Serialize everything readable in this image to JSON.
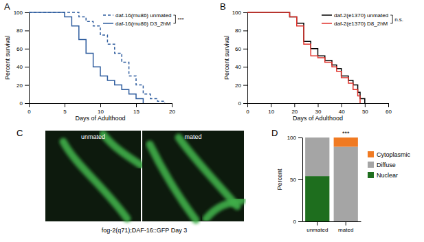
{
  "chart_data": [
    {
      "type": "line",
      "title": "A",
      "xlabel": "Days of Adulthood",
      "ylabel": "Percent survival",
      "x": [
        0,
        5,
        6,
        7,
        8,
        9,
        10,
        11,
        12,
        13,
        14,
        15,
        16,
        17,
        18,
        19
      ],
      "series": [
        {
          "name": "daf-16(mu86) unmated",
          "color": "#2e5c9e",
          "line_style": "dashed",
          "values": [
            100,
            100,
            100,
            95,
            90,
            85,
            75,
            65,
            55,
            45,
            30,
            20,
            10,
            5,
            2,
            0
          ]
        },
        {
          "name": "daf-16(mu86) D3_2hM",
          "color": "#2e5c9e",
          "line_style": "solid",
          "values": [
            100,
            95,
            85,
            70,
            55,
            40,
            30,
            25,
            20,
            15,
            10,
            5,
            0,
            null,
            null,
            null
          ]
        }
      ],
      "xlim": [
        0,
        20
      ],
      "xticks": [
        0,
        5,
        10,
        15,
        20
      ],
      "ylim": [
        0,
        100
      ],
      "yticks": [
        0,
        20,
        40,
        60,
        80,
        100
      ],
      "annotations": [
        "***"
      ]
    },
    {
      "type": "line",
      "title": "B",
      "xlabel": "Days of Adulthood",
      "ylabel": "Percent survival",
      "x": [
        0,
        18,
        21,
        24,
        27,
        30,
        33,
        36,
        38,
        40,
        43,
        45,
        47,
        48,
        50
      ],
      "series": [
        {
          "name": "daf-2(e1370) unmated",
          "color": "#000000",
          "line_style": "solid",
          "values": [
            100,
            95,
            88,
            68,
            60,
            52,
            47,
            42,
            38,
            30,
            25,
            20,
            12,
            5,
            0
          ]
        },
        {
          "name": "daf-2(e1370) D8_2hM",
          "color": "#e0322b",
          "line_style": "solid",
          "values": [
            100,
            95,
            85,
            65,
            52,
            50,
            45,
            40,
            35,
            28,
            22,
            15,
            8,
            0,
            null
          ]
        }
      ],
      "xlim": [
        0,
        60
      ],
      "xticks": [
        0,
        10,
        20,
        30,
        40,
        50,
        60
      ],
      "ylim": [
        0,
        100
      ],
      "yticks": [
        0,
        20,
        40,
        60,
        80,
        100
      ],
      "annotations": [
        "n.s."
      ]
    },
    {
      "type": "bar",
      "stacked": true,
      "title": "D",
      "ylabel": "Percent",
      "categories": [
        "unmated",
        "mated"
      ],
      "series": [
        {
          "name": "Nuclear",
          "color": "#1e6e1e",
          "values": [
            54,
            0
          ]
        },
        {
          "name": "Diffuse",
          "color": "#a5a5a5",
          "values": [
            46,
            89
          ]
        },
        {
          "name": "Cytoplasmic",
          "color": "#f07a22",
          "values": [
            0,
            11
          ]
        }
      ],
      "ylim": [
        0,
        100
      ],
      "yticks": [
        0,
        50,
        100
      ],
      "legend": "right",
      "annotations": [
        "***"
      ]
    }
  ],
  "image_panel": {
    "title": "C",
    "labels": [
      "unmated",
      "mated"
    ],
    "caption": "fog-2(q71);DAF-16::GFP Day 3"
  }
}
